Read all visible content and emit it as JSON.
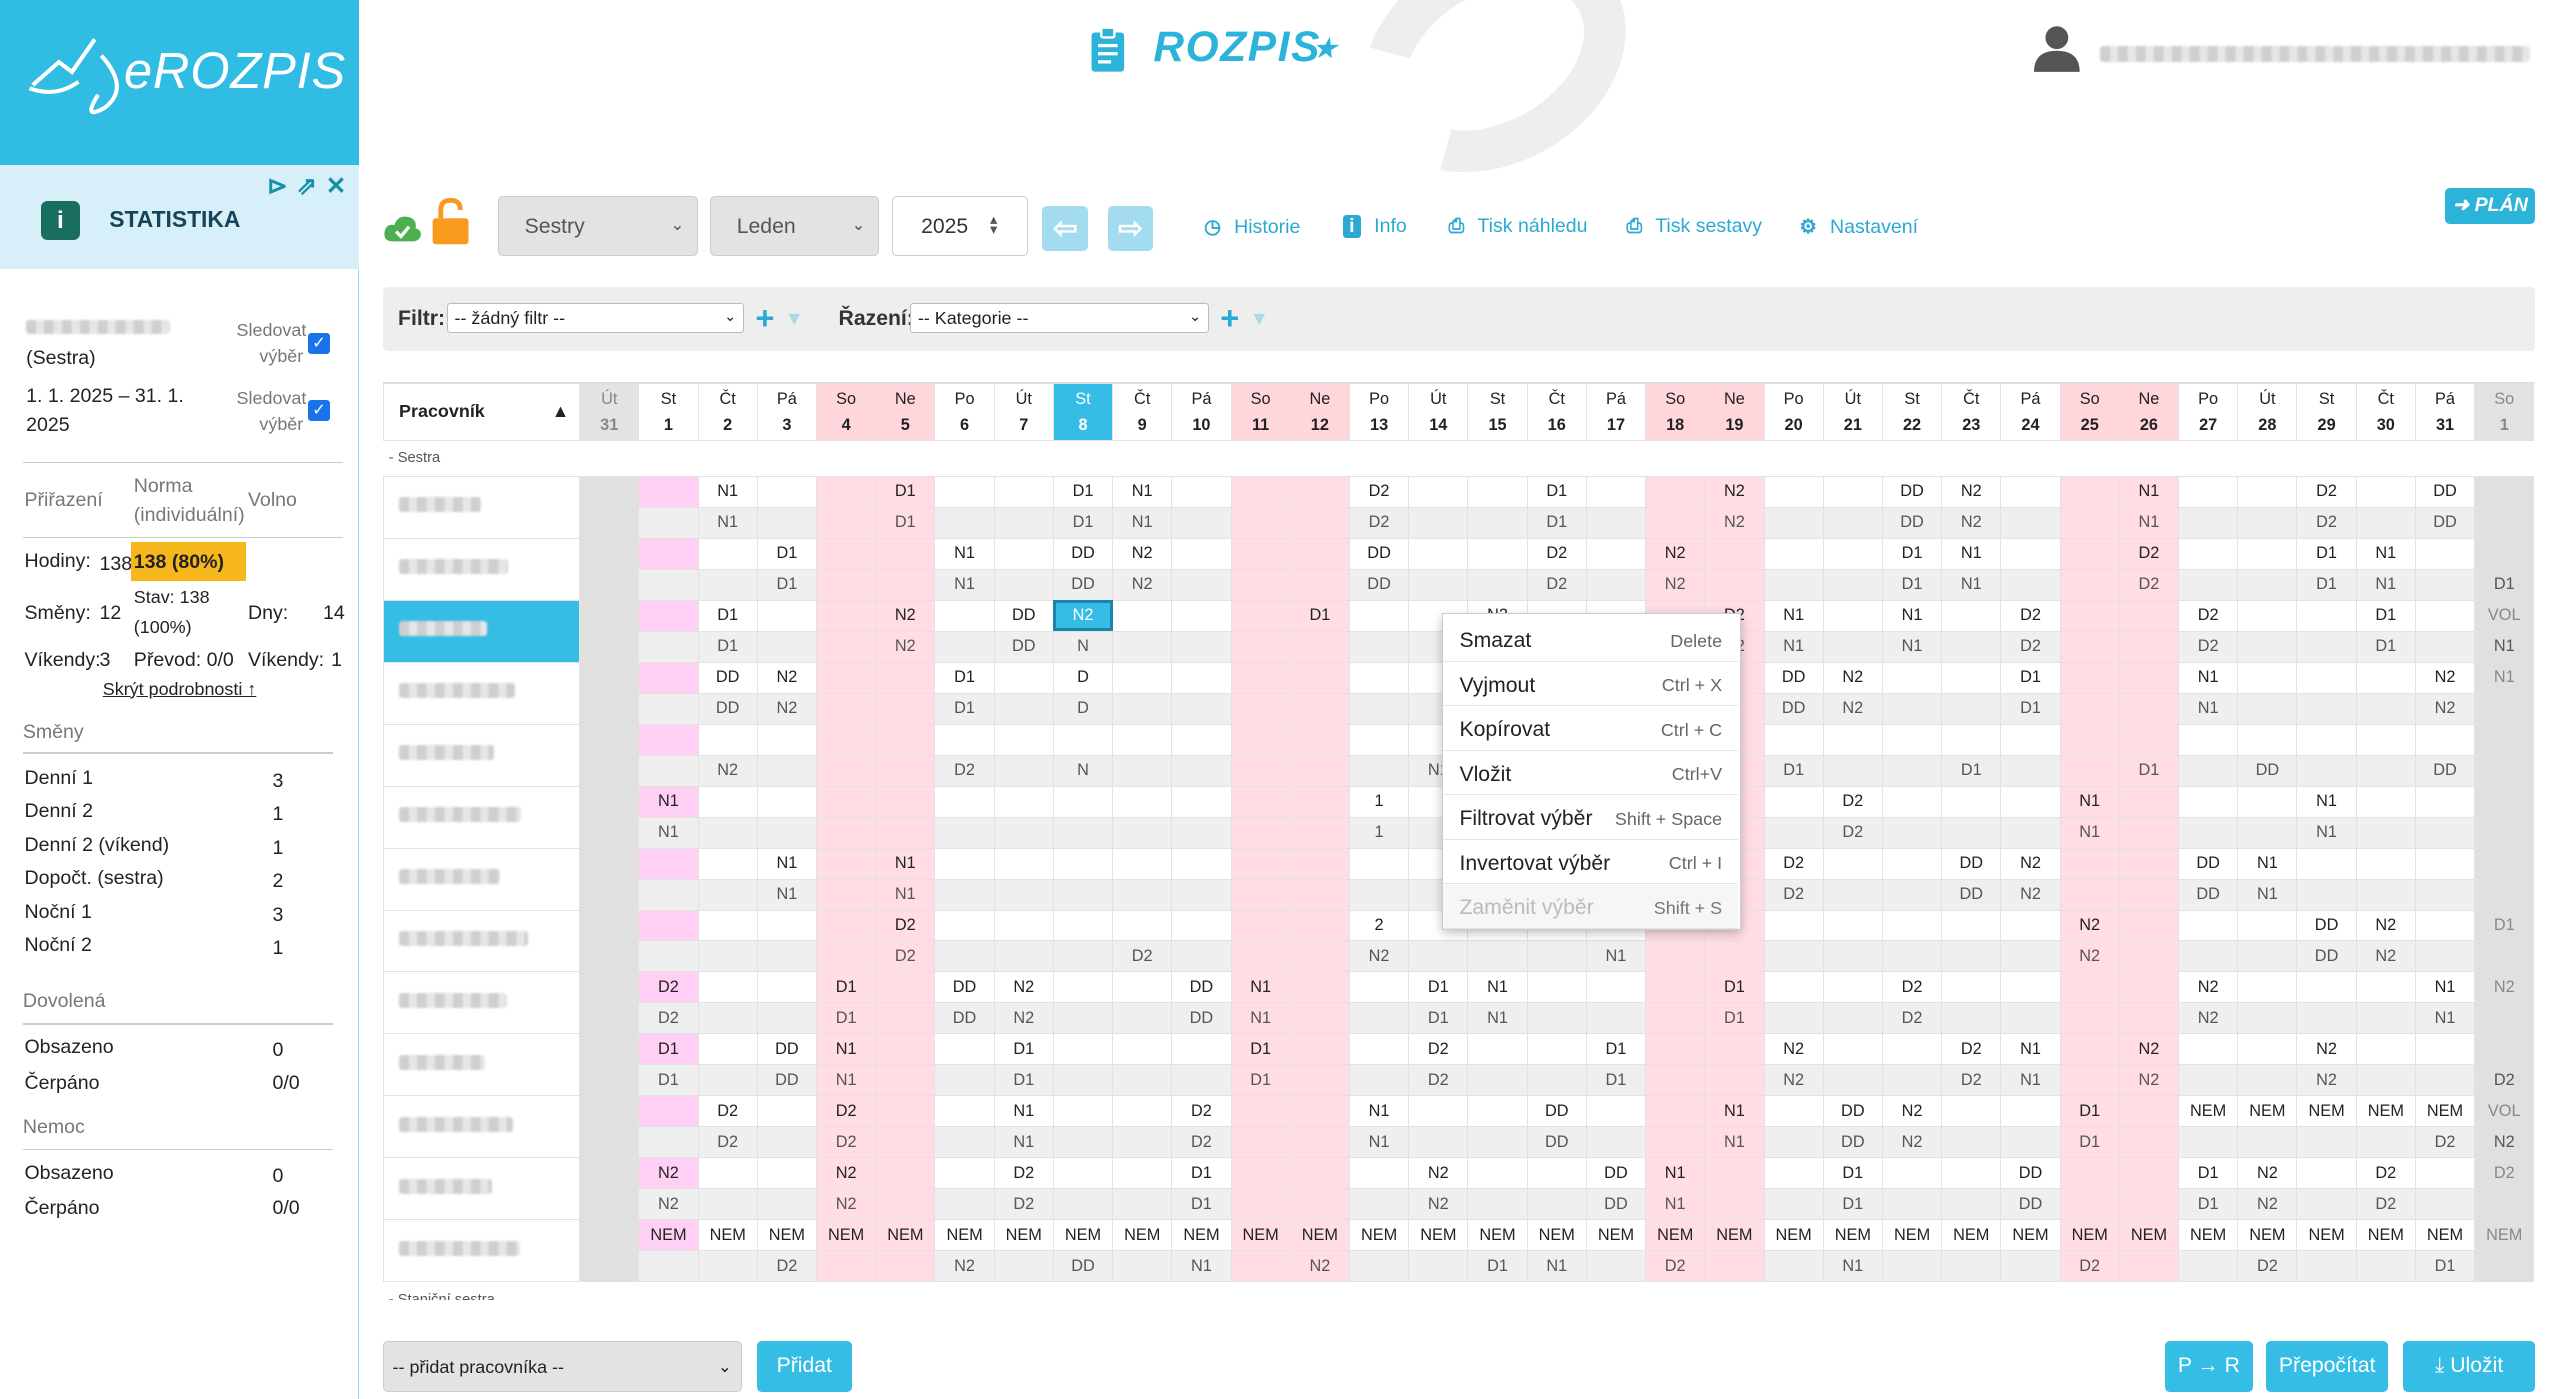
{
  "app": {
    "logo_text": "eROZPIS",
    "brand_title": "ROZPIS"
  },
  "sidebar": {
    "title": "STATISTIKA",
    "sledovat_1": "Sledovat",
    "sledovat_2": "výběr",
    "role": "(Sestra)",
    "period_1": "1. 1. 2025 – 31. 1.",
    "period_2": "2025",
    "col_prirazeni": "Přiřazení",
    "col_norma_1": "Norma",
    "col_norma_2": "(individuální)",
    "col_volno": "Volno",
    "hodiny_label": "Hodiny:",
    "hodiny_val": "138",
    "hodiny_pct": "138 (80%)",
    "smeny_label": "Směny:",
    "smeny_val": "12",
    "stav_1": "Stav: 138",
    "stav_2": "(100%)",
    "dny_label": "Dny:",
    "dny_val": "14",
    "vikendy_label": "Víkendy:",
    "vikendy_val": "3",
    "prevod": "Převod: 0/0",
    "vikendy2_label": "Víkendy:",
    "vikendy2_val": "1",
    "hide_link": "Skrýt podrobnosti ↑",
    "smeny_section": "Směny",
    "shifts": [
      {
        "name": "Denní 1",
        "val": "3"
      },
      {
        "name": "Denní 2",
        "val": "1"
      },
      {
        "name": "Denní 2 (víkend)",
        "val": "1"
      },
      {
        "name": "Dopočt. (sestra)",
        "val": "2"
      },
      {
        "name": "Noční 1",
        "val": "3"
      },
      {
        "name": "Noční 2",
        "val": "1"
      }
    ],
    "dovolena_section": "Dovolená",
    "dovolena": [
      {
        "name": "Obsazeno",
        "val": "0"
      },
      {
        "name": "Čerpáno",
        "val": "0/0"
      }
    ],
    "nemoc_section": "Nemoc",
    "nemoc": [
      {
        "name": "Obsazeno",
        "val": "0"
      },
      {
        "name": "Čerpáno",
        "val": "0/0"
      }
    ]
  },
  "toolbar": {
    "group": "Sestry",
    "month": "Leden",
    "year": "2025",
    "historie": "Historie",
    "info": "Info",
    "tisk_nahledu": "Tisk náhledu",
    "tisk_sestavy": "Tisk sestavy",
    "nastaveni": "Nastavení",
    "plan": "PLÁN"
  },
  "filter": {
    "filtr_label": "Filtr:",
    "filtr_value": "-- žádný filtr --",
    "razeni_label": "Řazení:",
    "razeni_value": "-- Kategorie --"
  },
  "grid": {
    "header_name": "Pracovník",
    "section_sestra": "- Sestra",
    "section_stanicni": "- Staniční sestra",
    "days": [
      {
        "d": "Út",
        "n": "31",
        "k": "gr"
      },
      {
        "d": "St",
        "n": "1",
        "k": "pk"
      },
      {
        "d": "Čt",
        "n": "2",
        "k": ""
      },
      {
        "d": "Pá",
        "n": "3",
        "k": ""
      },
      {
        "d": "So",
        "n": "4",
        "k": "we"
      },
      {
        "d": "Ne",
        "n": "5",
        "k": "we"
      },
      {
        "d": "Po",
        "n": "6",
        "k": ""
      },
      {
        "d": "Út",
        "n": "7",
        "k": ""
      },
      {
        "d": "St",
        "n": "8",
        "k": "tod"
      },
      {
        "d": "Čt",
        "n": "9",
        "k": ""
      },
      {
        "d": "Pá",
        "n": "10",
        "k": ""
      },
      {
        "d": "So",
        "n": "11",
        "k": "we"
      },
      {
        "d": "Ne",
        "n": "12",
        "k": "we"
      },
      {
        "d": "Po",
        "n": "13",
        "k": ""
      },
      {
        "d": "Út",
        "n": "14",
        "k": ""
      },
      {
        "d": "St",
        "n": "15",
        "k": ""
      },
      {
        "d": "Čt",
        "n": "16",
        "k": ""
      },
      {
        "d": "Pá",
        "n": "17",
        "k": ""
      },
      {
        "d": "So",
        "n": "18",
        "k": "we"
      },
      {
        "d": "Ne",
        "n": "19",
        "k": "we"
      },
      {
        "d": "Po",
        "n": "20",
        "k": ""
      },
      {
        "d": "Út",
        "n": "21",
        "k": ""
      },
      {
        "d": "St",
        "n": "22",
        "k": ""
      },
      {
        "d": "Čt",
        "n": "23",
        "k": ""
      },
      {
        "d": "Pá",
        "n": "24",
        "k": ""
      },
      {
        "d": "So",
        "n": "25",
        "k": "we"
      },
      {
        "d": "Ne",
        "n": "26",
        "k": "we"
      },
      {
        "d": "Po",
        "n": "27",
        "k": ""
      },
      {
        "d": "Út",
        "n": "28",
        "k": ""
      },
      {
        "d": "St",
        "n": "29",
        "k": ""
      },
      {
        "d": "Čt",
        "n": "30",
        "k": ""
      },
      {
        "d": "Pá",
        "n": "31",
        "k": ""
      },
      {
        "d": "So",
        "n": "1",
        "k": "gr"
      }
    ],
    "rows": [
      {
        "top": [
          "",
          "",
          "N1",
          "",
          "",
          "D1",
          "",
          "",
          "D1",
          "N1",
          "",
          "",
          "",
          "D2",
          "",
          "",
          "D1",
          "",
          "",
          "N2",
          "",
          "",
          "DD",
          "N2",
          "",
          "",
          "N1",
          "",
          "",
          "D2",
          "",
          "DD",
          ""
        ],
        "bot": [
          "",
          "",
          "N1",
          "",
          "",
          "D1",
          "",
          "",
          "D1",
          "N1",
          "",
          "",
          "",
          "D2",
          "",
          "",
          "D1",
          "",
          "",
          "N2",
          "",
          "",
          "DD",
          "N2",
          "",
          "",
          "N1",
          "",
          "",
          "D2",
          "",
          "DD",
          ""
        ]
      },
      {
        "top": [
          "",
          "",
          "",
          "D1",
          "",
          "",
          "N1",
          "",
          "DD",
          "N2",
          "",
          "",
          "",
          "DD",
          "",
          "",
          "D2",
          "",
          "N2",
          "",
          "",
          "",
          "D1",
          "N1",
          "",
          "",
          "D2",
          "",
          "",
          "D1",
          "N1",
          "",
          ""
        ],
        "bot": [
          "",
          "",
          "",
          "D1",
          "",
          "",
          "N1",
          "",
          "DD",
          "N2",
          "",
          "",
          "",
          "DD",
          "",
          "",
          "D2",
          "",
          "N2",
          "",
          "",
          "",
          "D1",
          "N1",
          "",
          "",
          "D2",
          "",
          "",
          "D1",
          "N1",
          "",
          "D1"
        ]
      },
      {
        "top": [
          "",
          "",
          "D1",
          "",
          "",
          "N2",
          "",
          "DD",
          "N2",
          "",
          "",
          "",
          "D1",
          "",
          "",
          "N2",
          "",
          "",
          "",
          "D2",
          "N1",
          "",
          "N1",
          "",
          "D2",
          "",
          "",
          "D2",
          "",
          "",
          "D1",
          "",
          "VOL"
        ],
        "bot": [
          "",
          "",
          "D1",
          "",
          "",
          "N2",
          "",
          "DD",
          "N",
          "",
          "",
          "",
          "",
          "",
          "",
          "N2",
          "",
          "",
          "",
          "D2",
          "N1",
          "",
          "N1",
          "",
          "D2",
          "",
          "",
          "D2",
          "",
          "",
          "D1",
          "",
          "N1"
        ]
      },
      {
        "top": [
          "",
          "",
          "DD",
          "N2",
          "",
          "",
          "D1",
          "",
          "D",
          "",
          "",
          "",
          "",
          "",
          "",
          "D2",
          "",
          "",
          "D1",
          "",
          "DD",
          "N2",
          "",
          "",
          "D1",
          "",
          "",
          "N1",
          "",
          "",
          "",
          "N2",
          "N1"
        ],
        "bot": [
          "",
          "",
          "DD",
          "N2",
          "",
          "",
          "D1",
          "",
          "D",
          "",
          "",
          "",
          "",
          "",
          "",
          "D2",
          "",
          "",
          "D1",
          "",
          "DD",
          "N2",
          "",
          "",
          "D1",
          "",
          "",
          "N1",
          "",
          "",
          "",
          "N2",
          ""
        ]
      },
      {
        "top": [
          "",
          "",
          "",
          "",
          "",
          "",
          "",
          "",
          "",
          "",
          "",
          "",
          "",
          "",
          "",
          "",
          "",
          "",
          "",
          "",
          "",
          "",
          "",
          "",
          "",
          "",
          "",
          "",
          "",
          "",
          "",
          "",
          ""
        ],
        "bot": [
          "",
          "",
          "N2",
          "",
          "",
          "",
          "D2",
          "",
          "N",
          "",
          "",
          "",
          "",
          "",
          "N1",
          "",
          "",
          "D2",
          "",
          "",
          "D1",
          "",
          "",
          "D1",
          "",
          "",
          "D1",
          "",
          "DD",
          "",
          "",
          "DD",
          ""
        ]
      },
      {
        "top": [
          "",
          "N1",
          "",
          "",
          "",
          "",
          "",
          "",
          "",
          "",
          "",
          "",
          "",
          "1",
          "",
          "",
          "",
          "N2",
          "",
          "",
          "",
          "D2",
          "",
          "",
          "",
          "N1",
          "",
          "",
          "",
          "N1",
          "",
          "",
          ""
        ],
        "bot": [
          "",
          "N1",
          "",
          "",
          "",
          "",
          "",
          "",
          "",
          "",
          "",
          "",
          "",
          "1",
          "",
          "",
          "",
          "N2",
          "",
          "",
          "",
          "D2",
          "",
          "",
          "",
          "N1",
          "",
          "",
          "",
          "N1",
          "",
          "",
          ""
        ]
      },
      {
        "top": [
          "",
          "",
          "",
          "N1",
          "",
          "N1",
          "",
          "",
          "",
          "",
          "",
          "",
          "",
          "",
          "",
          "DD",
          "N2",
          "",
          "",
          "",
          "D2",
          "",
          "",
          "DD",
          "N2",
          "",
          "",
          "DD",
          "N1",
          "",
          "",
          "",
          ""
        ],
        "bot": [
          "",
          "",
          "",
          "N1",
          "",
          "N1",
          "",
          "",
          "",
          "",
          "",
          "",
          "",
          "",
          "",
          "DD",
          "N2",
          "",
          "",
          "",
          "D2",
          "",
          "",
          "DD",
          "N2",
          "",
          "",
          "DD",
          "N1",
          "",
          "",
          "",
          ""
        ]
      },
      {
        "top": [
          "",
          "",
          "",
          "",
          "",
          "D2",
          "",
          "",
          "",
          "",
          "",
          "",
          "",
          "2",
          "",
          "",
          "",
          "N1",
          "",
          "",
          "",
          "",
          "",
          "",
          "",
          "N2",
          "",
          "",
          "",
          "DD",
          "N2",
          "",
          "D1"
        ],
        "bot": [
          "",
          "",
          "",
          "",
          "",
          "D2",
          "",
          "",
          "",
          "D2",
          "",
          "",
          "",
          "N2",
          "",
          "",
          "",
          "N1",
          "",
          "",
          "",
          "",
          "",
          "",
          "",
          "N2",
          "",
          "",
          "",
          "DD",
          "N2",
          "",
          ""
        ]
      },
      {
        "top": [
          "",
          "D2",
          "",
          "",
          "D1",
          "",
          "DD",
          "N2",
          "",
          "",
          "DD",
          "N1",
          "",
          "",
          "D1",
          "N1",
          "",
          "",
          "",
          "D1",
          "",
          "",
          "D2",
          "",
          "",
          "",
          "",
          "N2",
          "",
          "",
          "",
          "N1",
          "N2"
        ],
        "bot": [
          "",
          "D2",
          "",
          "",
          "D1",
          "",
          "DD",
          "N2",
          "",
          "",
          "DD",
          "N1",
          "",
          "",
          "D1",
          "N1",
          "",
          "",
          "",
          "D1",
          "",
          "",
          "D2",
          "",
          "",
          "",
          "",
          "N2",
          "",
          "",
          "",
          "N1",
          ""
        ]
      },
      {
        "top": [
          "",
          "D1",
          "",
          "DD",
          "N1",
          "",
          "",
          "D1",
          "",
          "",
          "",
          "D1",
          "",
          "",
          "D2",
          "",
          "",
          "D1",
          "",
          "",
          "N2",
          "",
          "",
          "D2",
          "N1",
          "",
          "N2",
          "",
          "",
          "N2",
          "",
          "",
          ""
        ],
        "bot": [
          "",
          "D1",
          "",
          "DD",
          "N1",
          "",
          "",
          "D1",
          "",
          "",
          "",
          "D1",
          "",
          "",
          "D2",
          "",
          "",
          "D1",
          "",
          "",
          "N2",
          "",
          "",
          "D2",
          "N1",
          "",
          "N2",
          "",
          "",
          "N2",
          "",
          "",
          "D2"
        ]
      },
      {
        "top": [
          "",
          "",
          "D2",
          "",
          "D2",
          "",
          "",
          "N1",
          "",
          "",
          "D2",
          "",
          "",
          "N1",
          "",
          "",
          "DD",
          "",
          "",
          "N1",
          "",
          "DD",
          "N2",
          "",
          "",
          "D1",
          "",
          "NEM",
          "NEM",
          "NEM",
          "NEM",
          "NEM",
          "VOL"
        ],
        "bot": [
          "",
          "",
          "D2",
          "",
          "D2",
          "",
          "",
          "N1",
          "",
          "",
          "D2",
          "",
          "",
          "N1",
          "",
          "",
          "DD",
          "",
          "",
          "N1",
          "",
          "DD",
          "N2",
          "",
          "",
          "D1",
          "",
          "",
          "",
          "",
          "",
          "D2",
          "N2"
        ]
      },
      {
        "top": [
          "",
          "N2",
          "",
          "",
          "N2",
          "",
          "",
          "D2",
          "",
          "",
          "D1",
          "",
          "",
          "",
          "N2",
          "",
          "",
          "DD",
          "N1",
          "",
          "",
          "D1",
          "",
          "",
          "DD",
          "",
          "",
          "D1",
          "N2",
          "",
          "D2",
          "",
          "D2"
        ],
        "bot": [
          "",
          "N2",
          "",
          "",
          "N2",
          "",
          "",
          "D2",
          "",
          "",
          "D1",
          "",
          "",
          "",
          "N2",
          "",
          "",
          "DD",
          "N1",
          "",
          "",
          "D1",
          "",
          "",
          "DD",
          "",
          "",
          "D1",
          "N2",
          "",
          "D2",
          "",
          ""
        ]
      },
      {
        "top": [
          "",
          "NEM",
          "NEM",
          "NEM",
          "NEM",
          "NEM",
          "NEM",
          "NEM",
          "NEM",
          "NEM",
          "NEM",
          "NEM",
          "NEM",
          "NEM",
          "NEM",
          "NEM",
          "NEM",
          "NEM",
          "NEM",
          "NEM",
          "NEM",
          "NEM",
          "NEM",
          "NEM",
          "NEM",
          "NEM",
          "NEM",
          "NEM",
          "NEM",
          "NEM",
          "NEM",
          "NEM",
          "NEM"
        ],
        "bot": [
          "",
          "",
          "",
          "D2",
          "",
          "",
          "N2",
          "",
          "DD",
          "",
          "N1",
          "",
          "N2",
          "",
          "",
          "D1",
          "N1",
          "",
          "D2",
          "",
          "",
          "N1",
          "",
          "",
          "",
          "D2",
          "",
          "",
          "D2",
          "",
          "",
          "D1",
          ""
        ]
      }
    ]
  },
  "context_menu": [
    {
      "label": "Smazat",
      "key": "Delete",
      "disabled": false
    },
    {
      "label": "Vyjmout",
      "key": "Ctrl + X",
      "disabled": false
    },
    {
      "label": "Kopírovat",
      "key": "Ctrl + C",
      "disabled": false
    },
    {
      "label": "Vložit",
      "key": "Ctrl+V",
      "disabled": false
    },
    {
      "label": "Filtrovat výběr",
      "key": "Shift + Space",
      "disabled": false
    },
    {
      "label": "Invertovat výběr",
      "key": "Ctrl + I",
      "disabled": false
    },
    {
      "label": "Zaměnit výběr",
      "key": "Shift + S",
      "disabled": true
    }
  ],
  "bottom": {
    "add_placeholder": "-- přidat pracovníka --",
    "pridat": "Přidat",
    "pr": "P → R",
    "prepocitat": "Přepočítat",
    "ulozit": "Uložit"
  }
}
